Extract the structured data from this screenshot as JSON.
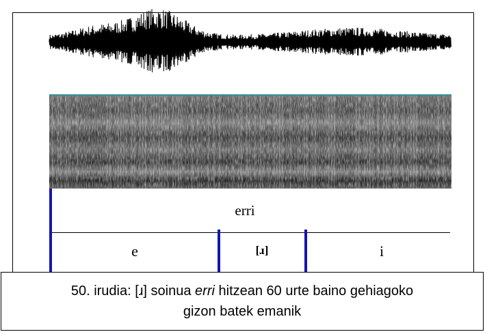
{
  "figure": {
    "tiers": {
      "word": "erri",
      "segments": [
        "e",
        "[ɹ]",
        "i"
      ]
    }
  },
  "caption": {
    "prefix": "50. irudia: [ɹ] soinua",
    "word": "erri",
    "suffix": "hitzean 60 urte baino gehiagoko",
    "line2": "gizon batek emanik"
  }
}
